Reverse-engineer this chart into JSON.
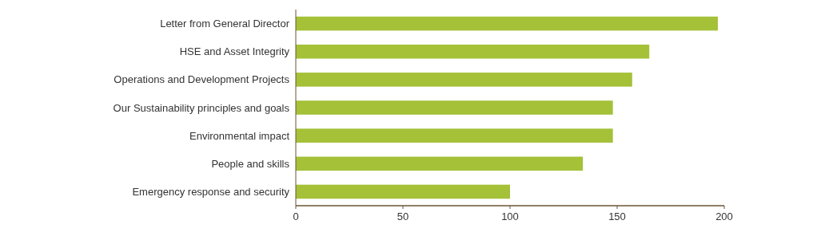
{
  "chart_data": {
    "type": "bar",
    "orientation": "horizontal",
    "categories": [
      "Letter from General Director",
      "HSE and Asset Integrity",
      "Operations and Development Projects",
      "Our Sustainability principles and goals",
      "Environmental impact",
      "People and skills",
      "Emergency response and security"
    ],
    "values": [
      197,
      165,
      157,
      148,
      148,
      134,
      100
    ],
    "color": "#a4c138",
    "xlim": [
      0,
      200
    ],
    "xticks": [
      0,
      50,
      100,
      150,
      200
    ],
    "grid": false
  }
}
